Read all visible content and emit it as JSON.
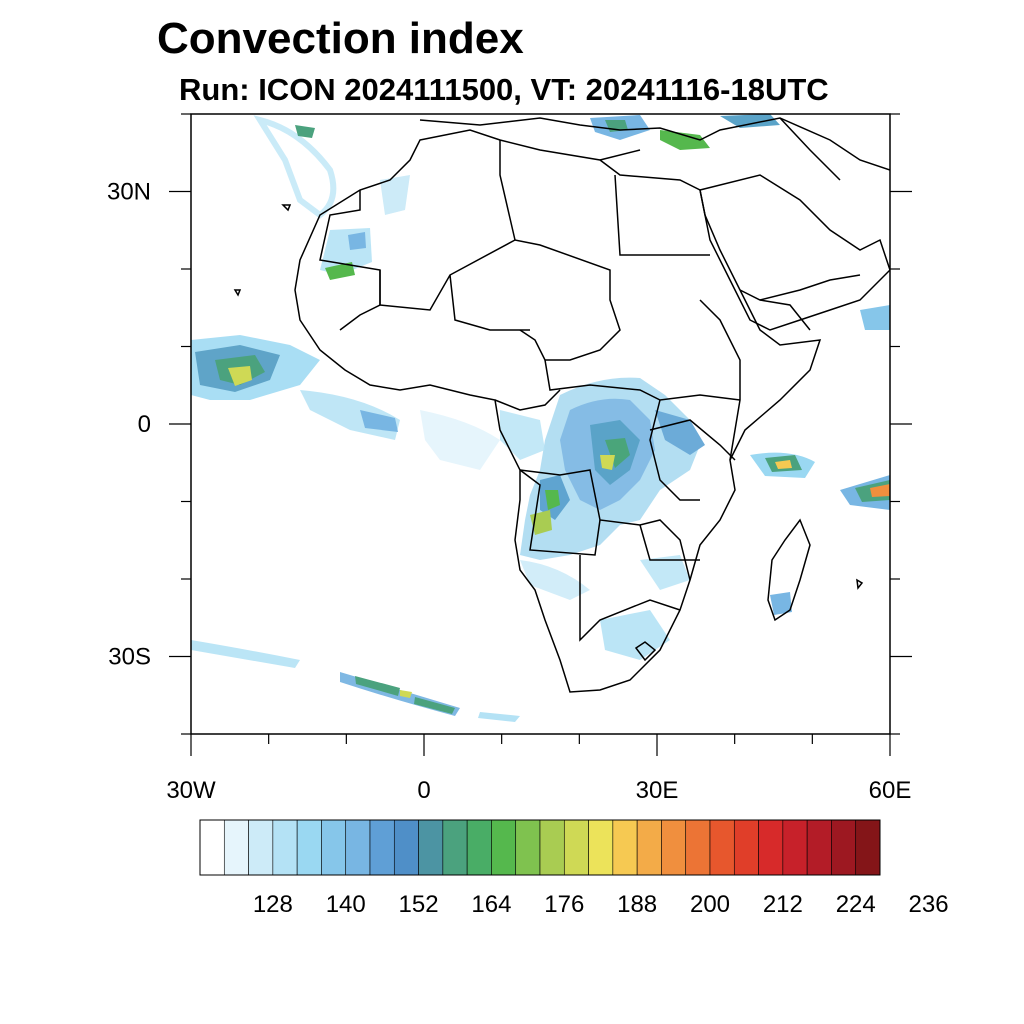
{
  "title": "Convection index",
  "subtitle": "Run: ICON 2024111500,  VT: 20241116-18UTC",
  "map": {
    "lon_range": [
      -30,
      60
    ],
    "lat_range": [
      -40,
      40
    ],
    "lat_ticks": [
      {
        "value": 30,
        "label": "30N"
      },
      {
        "value": 0,
        "label": "0"
      },
      {
        "value": -30,
        "label": "30S"
      }
    ],
    "lon_ticks": [
      {
        "value": -30,
        "label": "30W"
      },
      {
        "value": 0,
        "label": "0"
      },
      {
        "value": 30,
        "label": "30E"
      },
      {
        "value": 60,
        "label": "60E"
      }
    ]
  },
  "colorbar": {
    "labels": [
      "128",
      "140",
      "152",
      "164",
      "176",
      "188",
      "200",
      "212",
      "224",
      "236"
    ],
    "colors": [
      "#ffffff",
      "#e6f5fc",
      "#cdebf8",
      "#b4e2f5",
      "#9ad8f2",
      "#86c6ea",
      "#78b6e3",
      "#5f9fd6",
      "#4f8fc8",
      "#4c94a3",
      "#4ba27e",
      "#49ad66",
      "#55b84d",
      "#7fc24f",
      "#a9cc52",
      "#cfd955",
      "#ece35a",
      "#f6c952",
      "#f3ab48",
      "#f08f3e",
      "#ec7435",
      "#e7572d",
      "#e03e29",
      "#d72a2a",
      "#c7212a",
      "#b31c27",
      "#9d1821",
      "#841518"
    ]
  }
}
